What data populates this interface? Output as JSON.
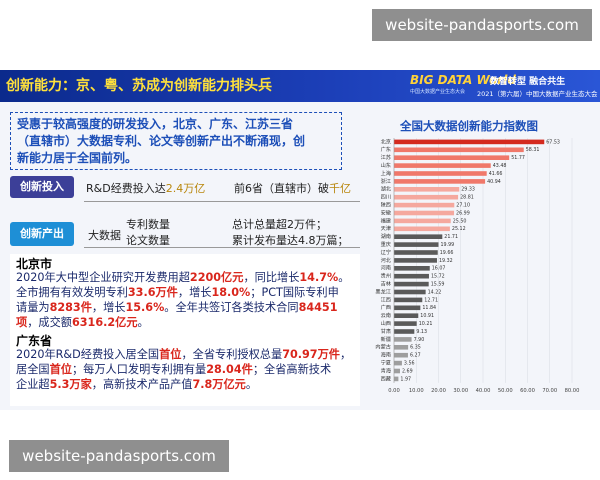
{
  "watermark_top": "website-pandasports.com",
  "watermark_bottom": "website-pandasports.com",
  "header": {
    "title": "创新能力：京、粤、苏成为创新能力排头兵",
    "logo_line1": "BIG DATA World",
    "logo_line2": "中国大数据产业生态大会",
    "slogan": "数智转型 融合共生",
    "conference": "2021（第六届）中国大数据产业生态大会"
  },
  "intro": {
    "line1": "受惠于较高强度的研发投入，北京、广东、江苏三省",
    "line2": "（直辖市）大数据专利、论文等创新产出不断涌现，创",
    "line3": "新能力居于全国前列。"
  },
  "input_row": {
    "badge": "创新投入",
    "text_a": "R&D经费投入达",
    "text_a_value": "2.4万亿",
    "text_b": "前6省（直辖市）破",
    "text_b_value": "千亿"
  },
  "output_row": {
    "badge": "创新产出",
    "category": "大数据",
    "item1": "专利数量",
    "item2": "论文数量",
    "value1": "总计总量超2万件；",
    "value2": "累计发布量达4.8万篇；"
  },
  "beijing": {
    "name": "北京市",
    "l1a": "2020年大中型企业研究开发费用超",
    "l1b": "2200亿元",
    "l1c": "，同比增长",
    "l1d": "14.7%",
    "l1e": "。",
    "l2a": "全市拥有有效发明专利",
    "l2b": "33.6万件",
    "l2c": "，增长",
    "l2d": "18.0%",
    "l2e": "；PCT国际专利申",
    "l3a": "请量为",
    "l3b": "8283件",
    "l3c": "，增长",
    "l3d": "15.6%",
    "l3e": "。全年共签订各类技术合同",
    "l3f": "84451",
    "l4a": "项",
    "l4b": "，成交额",
    "l4c": "6316.2亿元",
    "l4d": "。"
  },
  "guangdong": {
    "name": "广东省",
    "l1a": "2020年R&D经费投入居全国",
    "l1b": "首位",
    "l1c": "，全省专利授权总量",
    "l1d": "70.97万件",
    "l1e": "，",
    "l2a": "居全国",
    "l2b": "首位",
    "l2c": "；每万人口发明专利拥有量",
    "l2d": "28.04件",
    "l2e": "；全省高新技术",
    "l3a": "企业超",
    "l3b": "5.3万家",
    "l3c": "，高新技术产品产值",
    "l3d": "7.8万亿元",
    "l3e": "。"
  },
  "chart_data": {
    "type": "bar",
    "orientation": "horizontal",
    "title": "全国大数据创新能力指数图",
    "categories": [
      "北京",
      "广东",
      "江苏",
      "山东",
      "上海",
      "浙江",
      "湖北",
      "四川",
      "陕西",
      "安徽",
      "福建",
      "天津",
      "湖南",
      "重庆",
      "辽宁",
      "河北",
      "河南",
      "贵州",
      "吉林",
      "黑龙江",
      "江西",
      "广西",
      "云南",
      "山西",
      "甘肃",
      "新疆",
      "内蒙古",
      "海南",
      "宁夏",
      "青海",
      "西藏"
    ],
    "values": [
      67.53,
      58.31,
      51.77,
      43.48,
      41.66,
      40.94,
      29.33,
      28.81,
      27.1,
      26.99,
      25.5,
      25.12,
      21.71,
      19.99,
      19.66,
      19.32,
      16.07,
      15.72,
      15.59,
      14.22,
      12.71,
      11.84,
      10.91,
      10.21,
      9.13,
      7.9,
      6.35,
      6.27,
      3.56,
      2.69,
      1.97
    ],
    "xlim": [
      0,
      80
    ],
    "xticks": [
      "0.00",
      "10.00",
      "20.00",
      "30.00",
      "40.00",
      "50.00",
      "60.00",
      "70.00",
      "80.00"
    ],
    "colors": {
      "top": "#d42a1f",
      "high": "#f0786a",
      "mid": "#f5a89e",
      "low": "#5a5a5a",
      "lowest": "#9e9e9e"
    }
  }
}
